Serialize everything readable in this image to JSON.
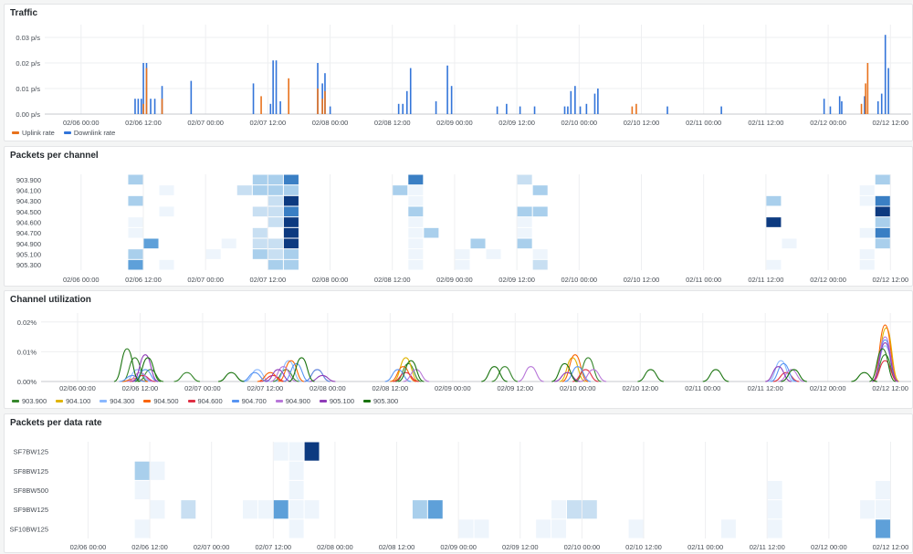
{
  "panels": {
    "traffic": {
      "title": "Traffic"
    },
    "packets_per_channel": {
      "title": "Packets per channel"
    },
    "channel_utilization": {
      "title": "Channel utilization"
    },
    "packets_per_data_rate": {
      "title": "Packets per data rate"
    }
  },
  "x_ticks": [
    "02/06 00:00",
    "02/06 12:00",
    "02/07 00:00",
    "02/07 12:00",
    "02/08 00:00",
    "02/08 12:00",
    "02/09 00:00",
    "02/09 12:00",
    "02/10 00:00",
    "02/10 12:00",
    "02/11 00:00",
    "02/11 12:00",
    "02/12 00:00",
    "02/12 12:00"
  ],
  "chart_data": [
    {
      "type": "bar",
      "title": "Traffic",
      "x_range_hours": [
        -7,
        160
      ],
      "ylim": [
        0,
        0.035
      ],
      "y_ticks": [
        "0.00 p/s",
        "0.01 p/s",
        "0.02 p/s",
        "0.03 p/s"
      ],
      "y_tick_values": [
        0,
        0.01,
        0.02,
        0.03
      ],
      "legend": "bottom-left",
      "series": [
        {
          "name": "Uplink rate",
          "color": "#e8721c",
          "points": [
            [
              12.0,
              0.004
            ],
            [
              12.6,
              0.018
            ],
            [
              15.6,
              0.006
            ],
            [
              34.7,
              0.007
            ],
            [
              40.0,
              0.014
            ],
            [
              45.6,
              0.01
            ],
            [
              46.5,
              0.006
            ],
            [
              47.0,
              0.009
            ],
            [
              106.2,
              0.003
            ],
            [
              107.0,
              0.004
            ],
            [
              150.4,
              0.004
            ],
            [
              151.2,
              0.012
            ],
            [
              151.6,
              0.02
            ]
          ]
        },
        {
          "name": "Downlink rate",
          "color": "#3274d9",
          "points": [
            [
              10.4,
              0.006
            ],
            [
              11.0,
              0.006
            ],
            [
              11.6,
              0.006
            ],
            [
              12.0,
              0.02
            ],
            [
              12.6,
              0.02
            ],
            [
              13.4,
              0.006
            ],
            [
              14.2,
              0.006
            ],
            [
              15.6,
              0.011
            ],
            [
              21.2,
              0.013
            ],
            [
              33.2,
              0.012
            ],
            [
              36.5,
              0.004
            ],
            [
              37.0,
              0.021
            ],
            [
              37.6,
              0.021
            ],
            [
              38.4,
              0.005
            ],
            [
              45.6,
              0.02
            ],
            [
              46.5,
              0.012
            ],
            [
              47.0,
              0.016
            ],
            [
              48.0,
              0.003
            ],
            [
              61.2,
              0.004
            ],
            [
              62.0,
              0.004
            ],
            [
              62.8,
              0.009
            ],
            [
              63.5,
              0.018
            ],
            [
              68.4,
              0.005
            ],
            [
              70.6,
              0.019
            ],
            [
              71.4,
              0.011
            ],
            [
              80.2,
              0.003
            ],
            [
              82.0,
              0.004
            ],
            [
              84.6,
              0.003
            ],
            [
              87.4,
              0.003
            ],
            [
              93.2,
              0.003
            ],
            [
              93.8,
              0.003
            ],
            [
              94.4,
              0.009
            ],
            [
              95.2,
              0.011
            ],
            [
              96.2,
              0.003
            ],
            [
              97.4,
              0.004
            ],
            [
              99.0,
              0.008
            ],
            [
              99.6,
              0.01
            ],
            [
              113.0,
              0.003
            ],
            [
              123.4,
              0.003
            ],
            [
              143.2,
              0.006
            ],
            [
              144.4,
              0.003
            ],
            [
              146.2,
              0.007
            ],
            [
              146.6,
              0.005
            ],
            [
              151.0,
              0.007
            ],
            [
              153.6,
              0.005
            ],
            [
              154.3,
              0.008
            ],
            [
              155.0,
              0.031
            ],
            [
              155.6,
              0.018
            ]
          ]
        }
      ]
    },
    {
      "type": "heatmap",
      "title": "Packets per channel",
      "rows": [
        "903.900",
        "904.100",
        "904.300",
        "904.500",
        "904.600",
        "904.700",
        "904.900",
        "905.100",
        "905.300"
      ],
      "x_range_hours": [
        -7,
        160
      ],
      "bucket_hours": 3,
      "color_scale": [
        "#eef5fc",
        "#c8dff2",
        "#a9cfec",
        "#5ea0d9",
        "#3a7fc4",
        "#0d3a80"
      ],
      "cells": [
        [
          "903.900",
          9,
          2
        ],
        [
          "903.900",
          33,
          2
        ],
        [
          "903.900",
          36,
          2
        ],
        [
          "903.900",
          39,
          4
        ],
        [
          "903.900",
          63,
          4
        ],
        [
          "903.900",
          84,
          1
        ],
        [
          "903.900",
          153,
          2
        ],
        [
          "904.100",
          15,
          0
        ],
        [
          "904.100",
          30,
          1
        ],
        [
          "904.100",
          33,
          2
        ],
        [
          "904.100",
          36,
          2
        ],
        [
          "904.100",
          39,
          2
        ],
        [
          "904.100",
          60,
          2
        ],
        [
          "904.100",
          63,
          0
        ],
        [
          "904.100",
          87,
          2
        ],
        [
          "904.100",
          150,
          0
        ],
        [
          "904.300",
          9,
          2
        ],
        [
          "904.300",
          36,
          1
        ],
        [
          "904.300",
          39,
          5
        ],
        [
          "904.300",
          63,
          0
        ],
        [
          "904.300",
          132,
          2
        ],
        [
          "904.300",
          150,
          0
        ],
        [
          "904.300",
          153,
          4
        ],
        [
          "904.500",
          15,
          0
        ],
        [
          "904.500",
          33,
          1
        ],
        [
          "904.500",
          36,
          1
        ],
        [
          "904.500",
          39,
          4
        ],
        [
          "904.500",
          63,
          2
        ],
        [
          "904.500",
          84,
          2
        ],
        [
          "904.500",
          87,
          2
        ],
        [
          "904.500",
          153,
          5
        ],
        [
          "904.600",
          9,
          0
        ],
        [
          "904.600",
          36,
          1
        ],
        [
          "904.600",
          39,
          5
        ],
        [
          "904.600",
          63,
          0
        ],
        [
          "904.600",
          84,
          0
        ],
        [
          "904.600",
          132,
          5
        ],
        [
          "904.600",
          153,
          2
        ],
        [
          "904.700",
          9,
          0
        ],
        [
          "904.700",
          33,
          1
        ],
        [
          "904.700",
          39,
          5
        ],
        [
          "904.700",
          63,
          0
        ],
        [
          "904.700",
          66,
          2
        ],
        [
          "904.700",
          84,
          0
        ],
        [
          "904.700",
          150,
          0
        ],
        [
          "904.700",
          153,
          4
        ],
        [
          "904.900",
          12,
          3
        ],
        [
          "904.900",
          27,
          0
        ],
        [
          "904.900",
          33,
          1
        ],
        [
          "904.900",
          36,
          1
        ],
        [
          "904.900",
          39,
          5
        ],
        [
          "904.900",
          63,
          0
        ],
        [
          "904.900",
          75,
          2
        ],
        [
          "904.900",
          84,
          2
        ],
        [
          "904.900",
          135,
          0
        ],
        [
          "904.900",
          153,
          2
        ],
        [
          "905.100",
          9,
          2
        ],
        [
          "905.100",
          24,
          0
        ],
        [
          "905.100",
          33,
          2
        ],
        [
          "905.100",
          36,
          1
        ],
        [
          "905.100",
          39,
          2
        ],
        [
          "905.100",
          63,
          0
        ],
        [
          "905.100",
          72,
          0
        ],
        [
          "905.100",
          78,
          0
        ],
        [
          "905.100",
          87,
          0
        ],
        [
          "905.100",
          150,
          0
        ],
        [
          "905.300",
          9,
          3
        ],
        [
          "905.300",
          15,
          0
        ],
        [
          "905.300",
          36,
          2
        ],
        [
          "905.300",
          39,
          2
        ],
        [
          "905.300",
          63,
          0
        ],
        [
          "905.300",
          72,
          0
        ],
        [
          "905.300",
          87,
          1
        ],
        [
          "905.300",
          132,
          0
        ],
        [
          "905.300",
          150,
          0
        ]
      ]
    },
    {
      "type": "line",
      "title": "Channel utilization",
      "x_range_hours": [
        -7,
        160
      ],
      "ylim": [
        0,
        0.023
      ],
      "y_ticks": [
        "0.00%",
        "0.01%",
        "0.02%"
      ],
      "y_tick_values": [
        0,
        0.01,
        0.02
      ],
      "legend": "bottom-left",
      "series": [
        {
          "name": "903.900",
          "color": "#37872d",
          "bumps": [
            [
              11.0,
              0.008
            ],
            [
              14.0,
              0.004
            ],
            [
              21.0,
              0.003
            ],
            [
              40.0,
              0.004
            ],
            [
              63.5,
              0.006
            ],
            [
              82.0,
              0.005
            ],
            [
              98.0,
              0.008
            ],
            [
              155.0,
              0.009
            ]
          ]
        },
        {
          "name": "904.100",
          "color": "#e0b400",
          "bumps": [
            [
              63.0,
              0.008
            ],
            [
              95.0,
              0.008
            ],
            [
              155.2,
              0.018
            ]
          ]
        },
        {
          "name": "904.300",
          "color": "#8ab8ff",
          "bumps": [
            [
              11.5,
              0.004
            ],
            [
              34.5,
              0.004
            ],
            [
              40.5,
              0.007
            ],
            [
              135.0,
              0.007
            ],
            [
              155.0,
              0.012
            ]
          ]
        },
        {
          "name": "904.500",
          "color": "#fa6400",
          "bumps": [
            [
              11.0,
              0.001
            ],
            [
              37.0,
              0.003
            ],
            [
              41.0,
              0.007
            ],
            [
              62.5,
              0.005
            ],
            [
              95.5,
              0.009
            ],
            [
              155.0,
              0.019
            ]
          ]
        },
        {
          "name": "904.600",
          "color": "#e02f44",
          "bumps": [
            [
              12.5,
              0.002
            ],
            [
              37.5,
              0.002
            ],
            [
              46.0,
              0.004
            ],
            [
              63.0,
              0.003
            ],
            [
              97.5,
              0.004
            ],
            [
              136.0,
              0.003
            ],
            [
              155.0,
              0.007
            ]
          ]
        },
        {
          "name": "904.700",
          "color": "#5794f2",
          "bumps": [
            [
              10.5,
              0.002
            ],
            [
              13.0,
              0.004
            ],
            [
              34.0,
              0.003
            ],
            [
              42.0,
              0.006
            ],
            [
              46.0,
              0.004
            ],
            [
              61.5,
              0.004
            ],
            [
              96.0,
              0.005
            ],
            [
              135.5,
              0.006
            ],
            [
              155.0,
              0.014
            ]
          ]
        },
        {
          "name": "904.900",
          "color": "#b877d9",
          "bumps": [
            [
              12.0,
              0.003
            ],
            [
              39.5,
              0.005
            ],
            [
              65.0,
              0.004
            ],
            [
              87.0,
              0.005
            ],
            [
              99.0,
              0.004
            ],
            [
              137.0,
              0.004
            ],
            [
              155.0,
              0.015
            ]
          ]
        },
        {
          "name": "905.100",
          "color": "#8f3bb8",
          "bumps": [
            [
              13.0,
              0.009
            ],
            [
              38.5,
              0.004
            ],
            [
              47.0,
              0.002
            ],
            [
              94.0,
              0.003
            ],
            [
              134.5,
              0.005
            ],
            [
              155.0,
              0.013
            ]
          ]
        },
        {
          "name": "905.300",
          "color": "#19730e",
          "bumps": [
            [
              9.5,
              0.011
            ],
            [
              13.5,
              0.008
            ],
            [
              29.5,
              0.003
            ],
            [
              43.0,
              0.008
            ],
            [
              64.0,
              0.007
            ],
            [
              80.0,
              0.005
            ],
            [
              93.5,
              0.006
            ],
            [
              110.0,
              0.004
            ],
            [
              122.5,
              0.004
            ],
            [
              137.5,
              0.004
            ],
            [
              151.0,
              0.003
            ],
            [
              154.5,
              0.011
            ]
          ]
        }
      ]
    },
    {
      "type": "heatmap",
      "title": "Packets per data rate",
      "rows": [
        "SF7BW125",
        "SF8BW125",
        "SF8BW500",
        "SF9BW125",
        "SF10BW125"
      ],
      "x_range_hours": [
        -7,
        160
      ],
      "bucket_hours": 3,
      "color_scale": [
        "#eef5fc",
        "#c8dff2",
        "#a9cfec",
        "#5ea0d9",
        "#3a7fc4",
        "#0d3a80"
      ],
      "cells": [
        [
          "SF7BW125",
          36,
          0
        ],
        [
          "SF7BW125",
          39,
          0
        ],
        [
          "SF7BW125",
          42,
          5
        ],
        [
          "SF8BW125",
          9,
          2
        ],
        [
          "SF8BW125",
          12,
          0
        ],
        [
          "SF8BW125",
          39,
          0
        ],
        [
          "SF8BW500",
          9,
          0
        ],
        [
          "SF8BW500",
          39,
          0
        ],
        [
          "SF8BW500",
          132,
          0
        ],
        [
          "SF8BW500",
          153,
          0
        ],
        [
          "SF9BW125",
          12,
          0
        ],
        [
          "SF9BW125",
          18,
          1
        ],
        [
          "SF9BW125",
          30,
          0
        ],
        [
          "SF9BW125",
          33,
          0
        ],
        [
          "SF9BW125",
          36,
          3
        ],
        [
          "SF9BW125",
          39,
          0
        ],
        [
          "SF9BW125",
          42,
          0
        ],
        [
          "SF9BW125",
          63,
          2
        ],
        [
          "SF9BW125",
          66,
          3
        ],
        [
          "SF9BW125",
          90,
          0
        ],
        [
          "SF9BW125",
          93,
          1
        ],
        [
          "SF9BW125",
          96,
          1
        ],
        [
          "SF9BW125",
          132,
          0
        ],
        [
          "SF9BW125",
          150,
          0
        ],
        [
          "SF9BW125",
          153,
          0
        ],
        [
          "SF10BW125",
          9,
          0
        ],
        [
          "SF10BW125",
          39,
          0
        ],
        [
          "SF10BW125",
          72,
          0
        ],
        [
          "SF10BW125",
          75,
          0
        ],
        [
          "SF10BW125",
          87,
          0
        ],
        [
          "SF10BW125",
          90,
          0
        ],
        [
          "SF10BW125",
          105,
          0
        ],
        [
          "SF10BW125",
          123,
          0
        ],
        [
          "SF10BW125",
          132,
          0
        ],
        [
          "SF10BW125",
          153,
          3
        ]
      ]
    }
  ]
}
